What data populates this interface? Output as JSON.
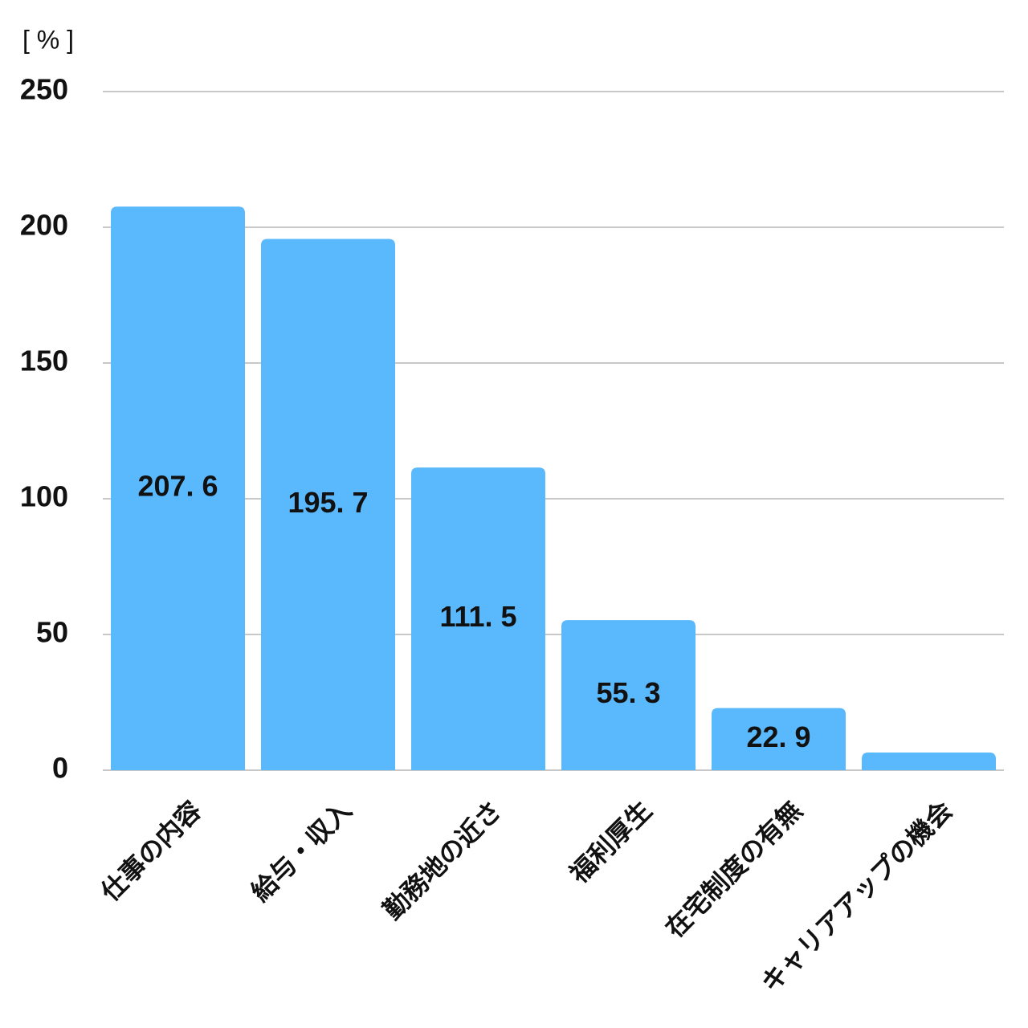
{
  "chart_data": {
    "type": "bar",
    "y_label": "[ % ]",
    "categories": [
      "仕事の内容",
      "給与・収入",
      "勤務地の近さ",
      "福利厚生",
      "在宅制度の有無",
      "キャリアアップの機会"
    ],
    "values": [
      207.6,
      195.7,
      111.5,
      55.3,
      22.9,
      6.5
    ],
    "value_labels": [
      "207. 6",
      "195. 7",
      "111. 5",
      "55. 3",
      "22. 9",
      null
    ],
    "color": "#5ab8fc",
    "ylim": [
      0,
      250
    ],
    "yticks": [
      0,
      50,
      100,
      150,
      200,
      250
    ],
    "grid": true
  }
}
